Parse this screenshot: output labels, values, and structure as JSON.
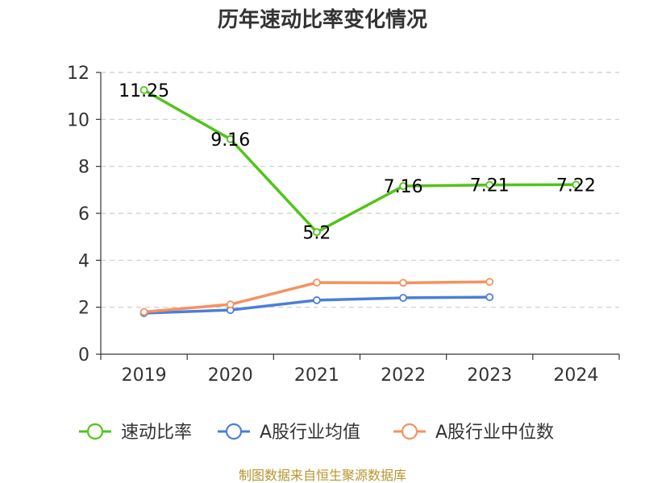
{
  "chart_data": {
    "type": "line",
    "title": "历年速动比率变化情况",
    "categories": [
      "2019",
      "2020",
      "2021",
      "2022",
      "2023",
      "2024"
    ],
    "ylim": [
      0,
      12
    ],
    "yticks": [
      0,
      2,
      4,
      6,
      8,
      10,
      12
    ],
    "grid": true,
    "legend_position": "bottom",
    "series": [
      {
        "name": "速动比率",
        "color": "#52c41a",
        "values": [
          11.25,
          9.16,
          5.2,
          7.16,
          7.21,
          7.22
        ],
        "labels": [
          "11.25",
          "9.16",
          "5.2",
          "7.16",
          "7.21",
          "7.22"
        ]
      },
      {
        "name": "A股行业均值",
        "color": "#4a7fd8",
        "values": [
          1.75,
          1.88,
          2.3,
          2.4,
          2.43,
          null
        ]
      },
      {
        "name": "A股行业中位数",
        "color": "#f4925f",
        "values": [
          1.8,
          2.12,
          3.05,
          3.04,
          3.08,
          null
        ]
      }
    ]
  },
  "source_text": "制图数据来自恒生聚源数据库"
}
